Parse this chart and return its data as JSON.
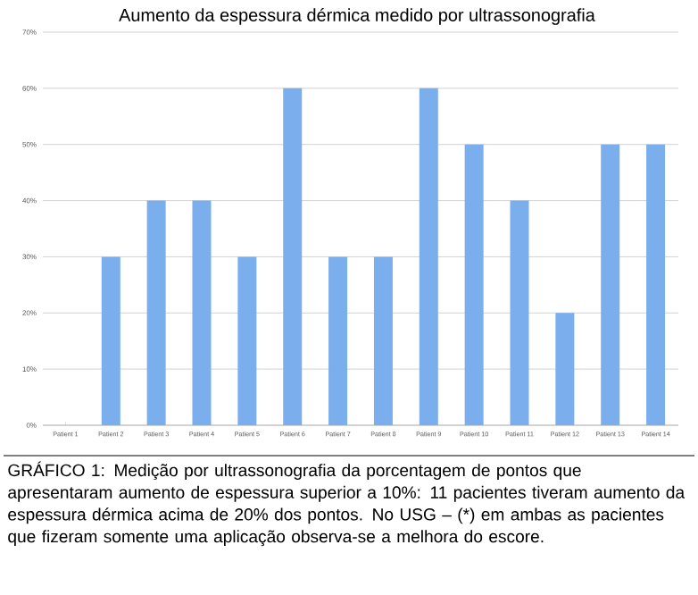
{
  "chart_data": {
    "type": "bar",
    "title": "Aumento da espessura dérmica medido por ultrassonografia",
    "categories": [
      "Patient 1",
      "Patient 2",
      "Patient 3",
      "Patient 4",
      "Patient 5",
      "Patient 6",
      "Patient 7",
      "Patient 8",
      "Patient 9",
      "Patient 10",
      "Patient 11",
      "Patient 12",
      "Patient 13",
      "Patient 14"
    ],
    "values": [
      0,
      30,
      40,
      40,
      30,
      60,
      30,
      30,
      60,
      50,
      40,
      20,
      50,
      50
    ],
    "color": "#7aaeed",
    "ylim": [
      0,
      70
    ],
    "yticks": [
      {
        "value": 0,
        "label": "0%"
      },
      {
        "value": 10,
        "label": "10%"
      },
      {
        "value": 20,
        "label": "20%"
      },
      {
        "value": 30,
        "label": "30%"
      },
      {
        "value": 40,
        "label": "40%"
      },
      {
        "value": 50,
        "label": "50%"
      },
      {
        "value": 60,
        "label": "60%"
      },
      {
        "value": 70,
        "label": "70%"
      }
    ],
    "grid": "y",
    "annotations": [
      "GRÁFICO 1: Medição por ultrassonografia da porcentagem de pontos que apresentaram aumento de espessura superior a 10%: 11 pacientes tiveram aumento da espessura dérmica acima de 20% dos pontos. No USG – (*) em ambas as pacientes que fizeram somente uma aplicação observa-se a melhora do escore."
    ]
  }
}
